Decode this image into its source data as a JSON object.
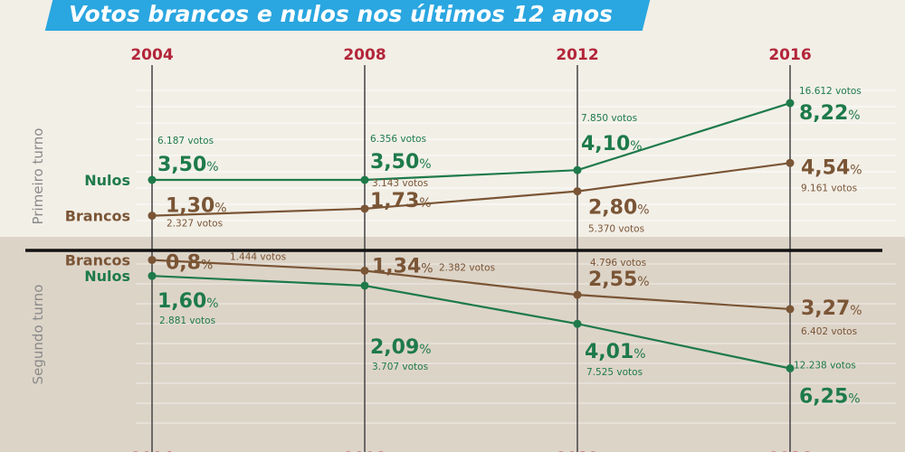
{
  "title": "Votos brancos e nulos nos últimos 12 anos",
  "colors": {
    "nulos": "#1e7a4a",
    "brancos": "#7a5535",
    "year": "#b3263a",
    "axis": "#4d4d4d",
    "divider": "#111111",
    "banner": "#2aa6e0"
  },
  "chart_data": {
    "type": "line",
    "x": [
      "2004",
      "2008",
      "2012",
      "2016"
    ],
    "panels": [
      {
        "name": "Primeiro turno",
        "series": [
          {
            "name": "Nulos",
            "key": "nulos",
            "values": [
              3.5,
              3.5,
              4.1,
              8.22
            ],
            "value_labels": [
              "3,50",
              "3,50",
              "4,10",
              "8,22"
            ],
            "votes": [
              "6.187 votos",
              "6.356 votos",
              "7.850 votos",
              "16.612 votos"
            ]
          },
          {
            "name": "Brancos",
            "key": "brancos",
            "values": [
              1.3,
              1.73,
              2.8,
              4.54
            ],
            "value_labels": [
              "1,30",
              "1,73",
              "2,80",
              "4,54"
            ],
            "votes": [
              "2.327 votos",
              "3.143 votos",
              "5.370 votos",
              "9.161 votos"
            ]
          }
        ]
      },
      {
        "name": "Segundo turno",
        "series": [
          {
            "name": "Brancos",
            "key": "brancos",
            "values": [
              0.8,
              1.34,
              2.55,
              3.27
            ],
            "value_labels": [
              "0,8",
              "1,34",
              "2,55",
              "3,27"
            ],
            "votes": [
              "1.444 votos",
              "2.382 votos",
              "4.796 votos",
              "6.402 votos"
            ]
          },
          {
            "name": "Nulos",
            "key": "nulos",
            "values": [
              1.6,
              2.09,
              4.01,
              6.25
            ],
            "value_labels": [
              "1,60",
              "2,09",
              "4,01",
              "6,25"
            ],
            "votes": [
              "2.881 votos",
              "3.707 votos",
              "7.525 votos",
              "12.238 votos"
            ]
          }
        ]
      }
    ],
    "percent_sign": "%"
  }
}
